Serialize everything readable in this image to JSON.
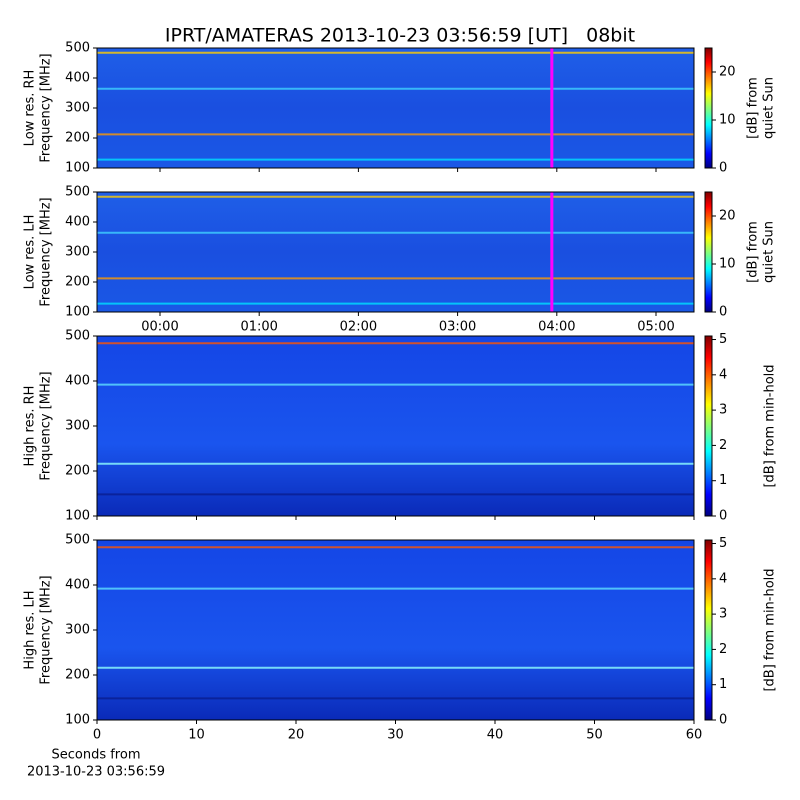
{
  "chart_data": [
    {
      "type": "spectrogram",
      "title": "IPRT/AMATERAS 2013-10-23 03:56:59 [UT]   08bit",
      "ylabel": [
        "Low res. RH",
        "Frequency [MHz]"
      ],
      "ylim": [
        100,
        500
      ],
      "yticks": [
        100,
        200,
        300,
        400,
        500
      ],
      "xlim": [
        -0.635,
        5.383
      ],
      "xticks": [
        0,
        1,
        2,
        3,
        4,
        5
      ],
      "xticklabels": false,
      "marker": {
        "x": 3.95,
        "color": "#ff00ff"
      },
      "colorbar": {
        "label": [
          "[dB] from",
          "quiet Sun"
        ],
        "lim": [
          0,
          25
        ],
        "ticks": [
          0,
          10,
          20
        ]
      }
    },
    {
      "type": "spectrogram",
      "ylabel": [
        "Low res. LH",
        "Frequency [MHz]"
      ],
      "ylim": [
        100,
        500
      ],
      "yticks": [
        100,
        200,
        300,
        400,
        500
      ],
      "xlim": [
        -0.635,
        5.383
      ],
      "xticks": [
        {
          "value": 0,
          "label": "00:00"
        },
        {
          "value": 1,
          "label": "01:00"
        },
        {
          "value": 2,
          "label": "02:00"
        },
        {
          "value": 3,
          "label": "03:00"
        },
        {
          "value": 4,
          "label": "04:00"
        },
        {
          "value": 5,
          "label": "05:00"
        }
      ],
      "marker": {
        "x": 3.95,
        "color": "#ff00ff"
      },
      "colorbar": {
        "label": [
          "[dB] from",
          "quiet Sun"
        ],
        "lim": [
          0,
          25
        ],
        "ticks": [
          0,
          10,
          20
        ]
      }
    },
    {
      "type": "spectrogram",
      "ylabel": [
        "High res. RH",
        "Frequency [MHz]"
      ],
      "ylim": [
        100,
        500
      ],
      "yticks": [
        100,
        200,
        300,
        400,
        500
      ],
      "xlim": [
        0,
        60
      ],
      "xticks": [
        0,
        10,
        20,
        30,
        40,
        50,
        60
      ],
      "xticklabels": false,
      "colorbar": {
        "label": [
          "[dB] from min-hold"
        ],
        "lim": [
          0,
          5.1
        ],
        "ticks": [
          0,
          1,
          2,
          3,
          4,
          5
        ]
      }
    },
    {
      "type": "spectrogram",
      "ylabel": [
        "High res. LH",
        "Frequency [MHz]"
      ],
      "ylim": [
        100,
        500
      ],
      "yticks": [
        100,
        200,
        300,
        400,
        500
      ],
      "xlim": [
        0,
        60
      ],
      "xticks": [
        0,
        10,
        20,
        30,
        40,
        50,
        60
      ],
      "xlabel": [
        "Seconds from",
        "2013-10-23 03:56:59"
      ],
      "colorbar": {
        "label": [
          "[dB] from min-hold"
        ],
        "lim": [
          0,
          5.1
        ],
        "ticks": [
          0,
          1,
          2,
          3,
          4,
          5
        ]
      }
    }
  ]
}
